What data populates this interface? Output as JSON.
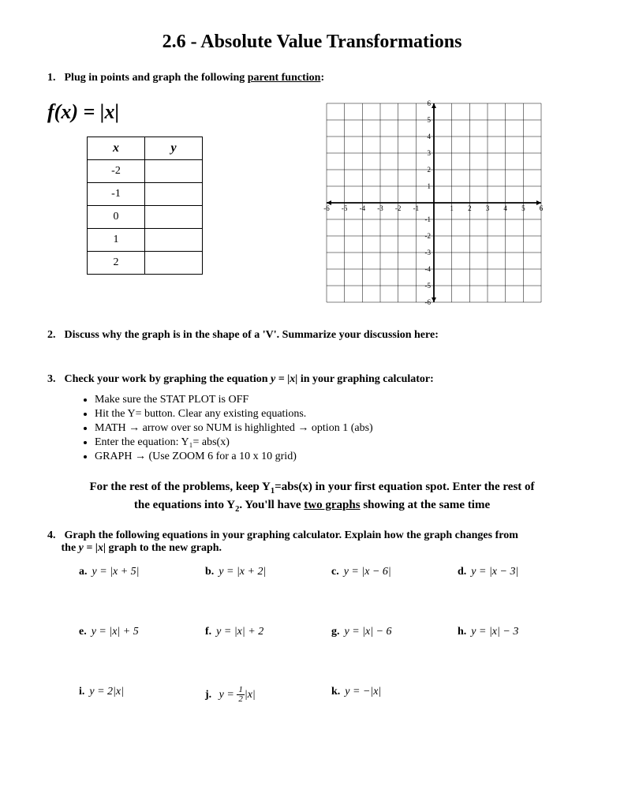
{
  "title": "2.6 - Absolute Value Transformations",
  "q1": {
    "num": "1.",
    "text_a": "Plug in points and graph the following ",
    "text_b": "parent function",
    "text_c": ":",
    "function": "f(x) = |x|",
    "table": {
      "headers": [
        "x",
        "y"
      ],
      "rows": [
        "-2",
        "-1",
        "0",
        "1",
        "2"
      ]
    }
  },
  "grid": {
    "min": -6,
    "max": 6,
    "step": 1,
    "axis_color": "#000000",
    "grid_color": "#000000",
    "grid_stroke": 0.5,
    "axis_stroke": 1.8,
    "label_fontsize": 9
  },
  "q2": {
    "num": "2.",
    "text": "Discuss why the graph is in the shape of a 'V'. Summarize your discussion here:"
  },
  "q3": {
    "num": "3.",
    "text_a": "Check your work by graphing the equation ",
    "eq": "y = |x|",
    "text_b": " in your graphing calculator:",
    "bullets": [
      "Make sure the STAT PLOT is OFF",
      "Hit the Y= button. Clear any existing equations.",
      "MATH → arrow over so NUM is highlighted → option 1 (abs)",
      "Enter the equation: Y₁= abs(x)",
      "GRAPH → (Use ZOOM 6 for a 10 x 10 grid)"
    ]
  },
  "note": {
    "line1_a": "For the rest of the problems, keep Y",
    "line1_sub": "1",
    "line1_b": "=abs(x) in your first equation spot. Enter the rest of",
    "line2_a": "the equations into Y",
    "line2_sub": "2",
    "line2_b": ". You'll have ",
    "line2_u": "two graphs",
    "line2_c": " showing at the same time"
  },
  "q4": {
    "num": "4.",
    "text_a": "Graph the following equations in your graphing calculator. Explain how the graph changes from",
    "text_b": "the ",
    "eq": "y = |x|",
    "text_c": " graph to the new graph.",
    "row1": [
      {
        "lbl": "a.",
        "eq": "y = |x + 5|"
      },
      {
        "lbl": "b.",
        "eq": "y = |x + 2|"
      },
      {
        "lbl": "c.",
        "eq": "y = |x − 6|"
      },
      {
        "lbl": "d.",
        "eq": "y = |x − 3|"
      }
    ],
    "row2": [
      {
        "lbl": "e.",
        "eq": "y = |x| + 5"
      },
      {
        "lbl": "f.",
        "eq": "y = |x| + 2"
      },
      {
        "lbl": "g.",
        "eq": "y = |x| − 6"
      },
      {
        "lbl": "h.",
        "eq": "y = |x| − 3"
      }
    ],
    "row3": [
      {
        "lbl": "i.",
        "eq": "y = 2|x|"
      },
      {
        "lbl": "j.",
        "eq_pre": "y = ",
        "frac_n": "1",
        "frac_d": "2",
        "eq_post": "|x|"
      },
      {
        "lbl": "k.",
        "eq": "y = −|x|"
      }
    ]
  }
}
